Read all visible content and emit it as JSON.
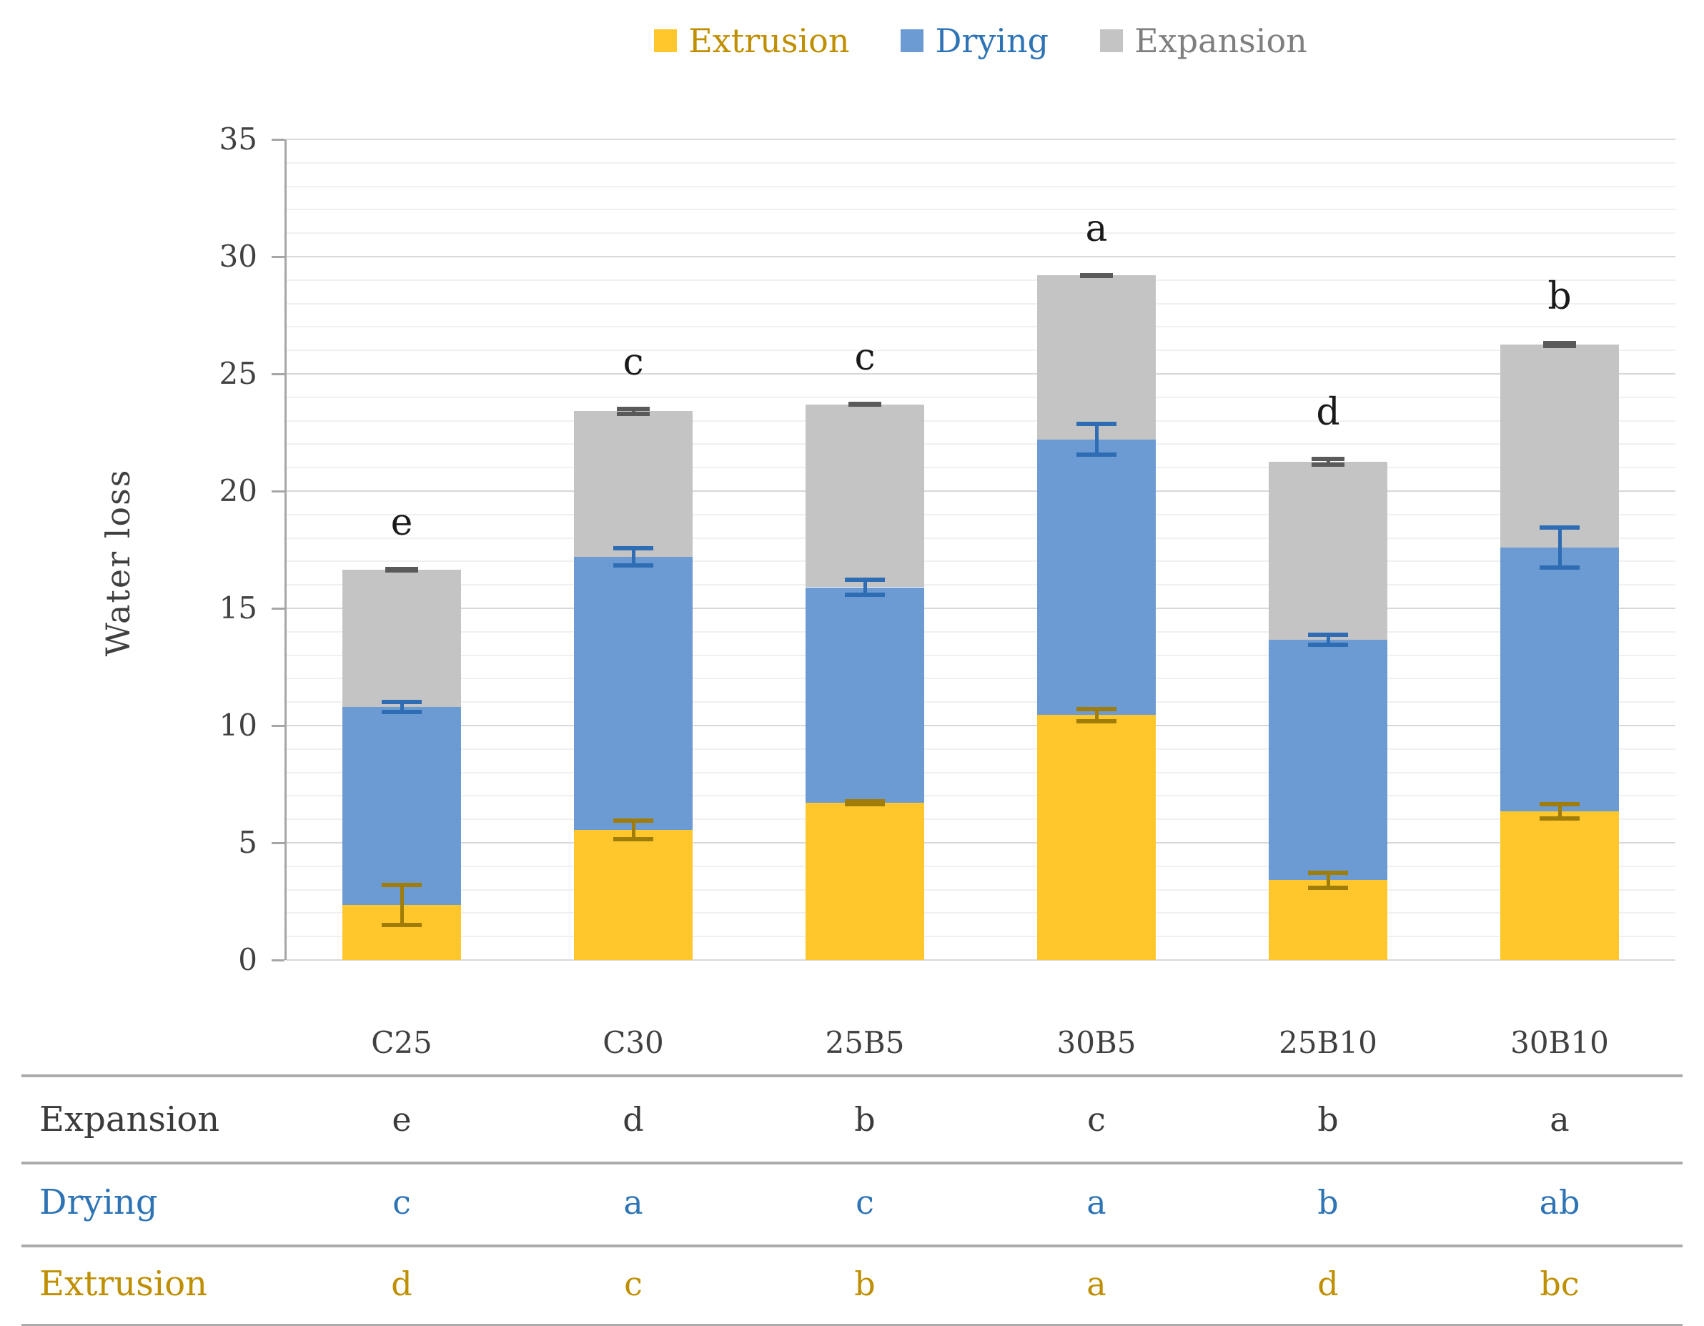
{
  "figure_title": "Water loss stacked bar chart with significance letters",
  "legend": {
    "items": [
      {
        "label": "Extrusion",
        "swatch_color": "#FFC72C",
        "text_color": "#BF8F00"
      },
      {
        "label": "Drying",
        "swatch_color": "#6B9BD2",
        "text_color": "#2E74B5"
      },
      {
        "label": "Expansion",
        "swatch_color": "#C4C4C4",
        "text_color": "#7F7F7F"
      }
    ]
  },
  "chart_data": {
    "type": "bar",
    "subtype": "stacked-vertical",
    "title": "",
    "xlabel": "",
    "ylabel": "Water loss",
    "ylim": [
      0,
      35
    ],
    "ytick_step": 5,
    "minor_grid_step": 1,
    "grid": true,
    "legend_position": "top",
    "categories": [
      "C25",
      "C30",
      "25B5",
      "30B5",
      "25B10",
      "30B10"
    ],
    "series": [
      {
        "name": "Extrusion",
        "color": "#FFC72C",
        "error_color": "#A07D08",
        "values": [
          2.35,
          5.55,
          6.7,
          10.45,
          3.4,
          6.35
        ],
        "errors": [
          0.95,
          0.5,
          0.15,
          0.35,
          0.4,
          0.4
        ]
      },
      {
        "name": "Drying",
        "color": "#6B9BD2",
        "error_color": "#2E6DB4",
        "values": [
          8.45,
          11.65,
          9.2,
          11.75,
          10.25,
          11.25
        ],
        "errors": [
          0.3,
          0.45,
          0.4,
          0.75,
          0.3,
          0.95
        ]
      },
      {
        "name": "Expansion",
        "color": "#C4C4C4",
        "error_color": "#5A5A5A",
        "values": [
          5.85,
          6.2,
          7.8,
          7.0,
          7.6,
          8.65
        ],
        "errors": [
          0.12,
          0.2,
          0.1,
          0.1,
          0.2,
          0.15
        ]
      }
    ],
    "stack_totals": [
      16.65,
      23.4,
      23.7,
      29.2,
      21.25,
      26.25
    ],
    "bar_letters": [
      "e",
      "c",
      "c",
      "a",
      "d",
      "b"
    ],
    "yticks": [
      0,
      5,
      10,
      15,
      20,
      25,
      30,
      35
    ]
  },
  "table": {
    "rows": [
      {
        "label": "Expansion",
        "color": "#3B3B3B",
        "cells": [
          "e",
          "d",
          "b",
          "c",
          "b",
          "a"
        ]
      },
      {
        "label": "Drying",
        "color": "#2E74B5",
        "cells": [
          "c",
          "a",
          "c",
          "a",
          "b",
          "ab"
        ]
      },
      {
        "label": "Extrusion",
        "color": "#BF8F00",
        "cells": [
          "d",
          "c",
          "b",
          "a",
          "d",
          "bc"
        ]
      }
    ]
  }
}
